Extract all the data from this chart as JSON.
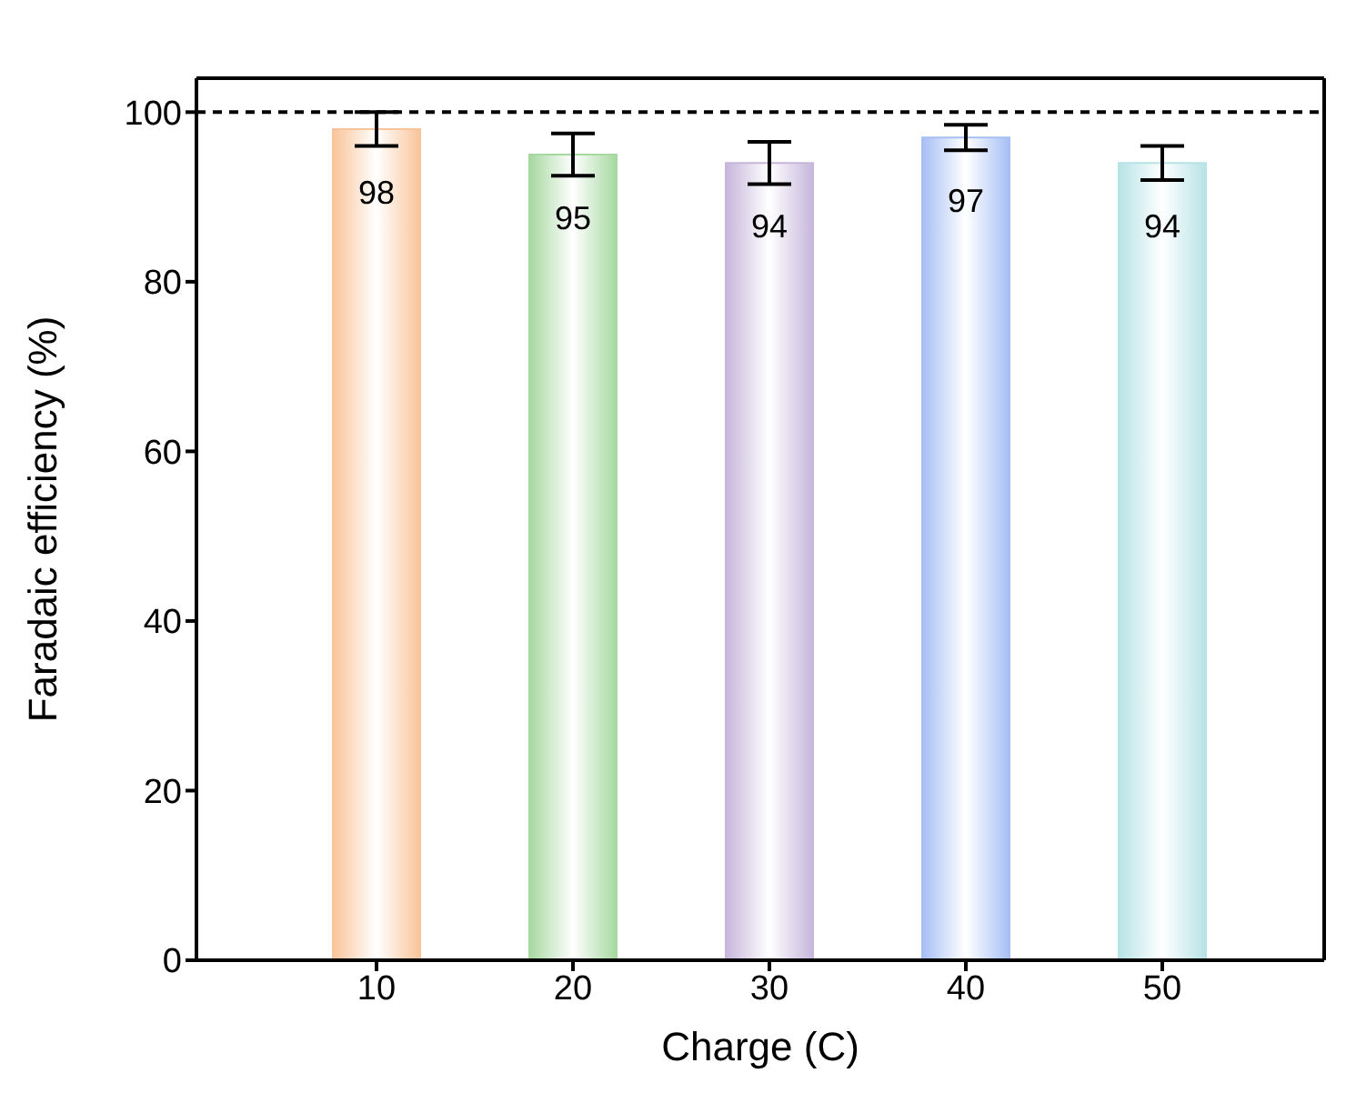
{
  "chart_data": {
    "type": "bar",
    "xlabel": "Charge (C)",
    "ylabel": "Faradaic efficiency (%)",
    "categories": [
      "10",
      "20",
      "30",
      "40",
      "50"
    ],
    "values": [
      98,
      95,
      94,
      97,
      94
    ],
    "errors": [
      2,
      2.5,
      2.5,
      1.5,
      2
    ],
    "colors": [
      "#f9c49a",
      "#a6d8a0",
      "#c6b6dc",
      "#a7bff5",
      "#b7e3e6"
    ],
    "ylim": [
      0,
      104
    ],
    "yticks": [
      0,
      20,
      40,
      60,
      80,
      100
    ],
    "data_labels": true,
    "ref_lines": [
      {
        "axis": "y",
        "value": 100,
        "color": "#000000",
        "line_style": "dashed"
      }
    ]
  }
}
